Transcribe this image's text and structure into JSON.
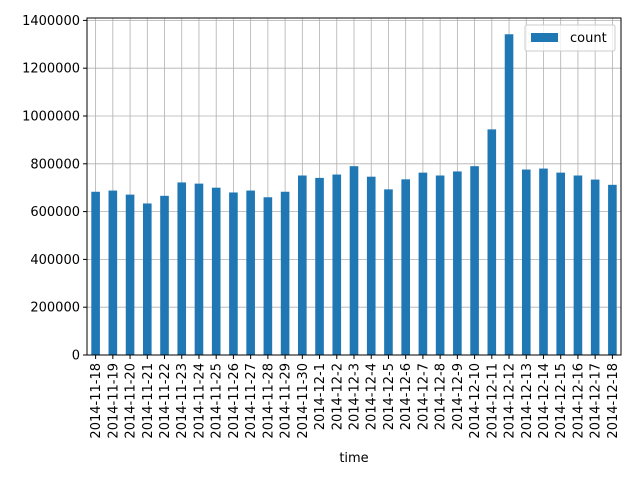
{
  "chart_data": {
    "type": "bar",
    "xlabel": "time",
    "ylabel": "",
    "ylim": [
      0,
      1410000
    ],
    "yticks": [
      0,
      200000,
      400000,
      600000,
      800000,
      1000000,
      1200000,
      1400000
    ],
    "grid": true,
    "legend_position": "top-right",
    "categories": [
      "2014-11-18",
      "2014-11-19",
      "2014-11-20",
      "2014-11-21",
      "2014-11-22",
      "2014-11-23",
      "2014-11-24",
      "2014-11-25",
      "2014-11-26",
      "2014-11-27",
      "2014-11-28",
      "2014-11-29",
      "2014-11-30",
      "2014-12-1",
      "2014-12-2",
      "2014-12-3",
      "2014-12-4",
      "2014-12-5",
      "2014-12-6",
      "2014-12-7",
      "2014-12-8",
      "2014-12-9",
      "2014-12-10",
      "2014-12-11",
      "2014-12-12",
      "2014-12-13",
      "2014-12-14",
      "2014-12-15",
      "2014-12-16",
      "2014-12-17",
      "2014-12-18"
    ],
    "series": [
      {
        "name": "count",
        "color": "#1f77b4",
        "values": [
          683000,
          688000,
          671000,
          634000,
          666000,
          722000,
          717000,
          700000,
          680000,
          688000,
          660000,
          683000,
          751000,
          741000,
          755000,
          790000,
          746000,
          693000,
          735000,
          763000,
          751000,
          768000,
          790000,
          944000,
          1342000,
          776000,
          780000,
          763000,
          751000,
          734000,
          712000
        ]
      }
    ]
  }
}
